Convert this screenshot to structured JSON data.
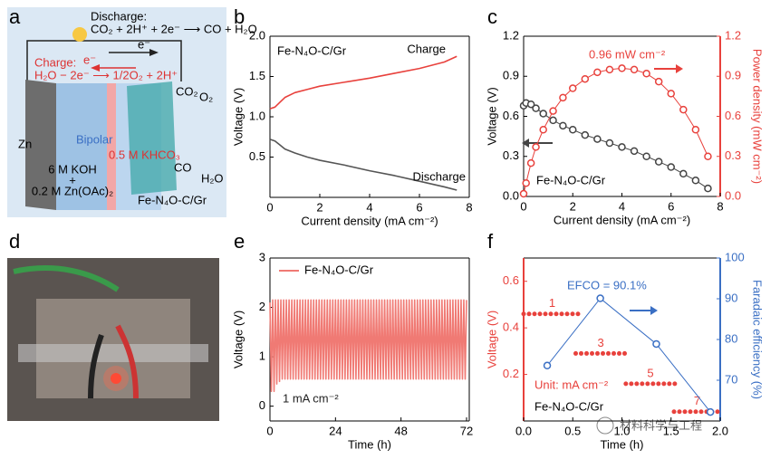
{
  "panel_labels": [
    "a",
    "b",
    "c",
    "d",
    "e",
    "f"
  ],
  "schematic": {
    "discharge_label": "Discharge:",
    "discharge_reaction": "CO₂ + 2H⁺ + 2e⁻ ⟶ CO + H₂O",
    "electron_top": "e⁻",
    "electron_charge": "e⁻",
    "charge_label": "Charge:",
    "charge_reaction": "H₂O − 2e⁻ ⟶ 1/2O₂ + 2H⁺",
    "anode": "Zn",
    "membrane": "Bipolar",
    "catholyte": "0.5 M KHCO₃",
    "species": [
      "CO₂",
      "O₂",
      "CO",
      "H₂O"
    ],
    "anolyte": [
      "6 M KOH",
      "+",
      "0.2 M Zn(OAc)₂"
    ],
    "cathode": "Fe-N₄O-C/Gr"
  },
  "watermark": "材料科学与工程",
  "chart_data": [
    {
      "type": "line",
      "inset_title": "Fe-N₄O-C/Gr",
      "xlabel": "Current density (mA cm⁻²)",
      "ylabel": "Voltage (V)",
      "xlim": [
        0,
        8
      ],
      "xticks": [
        0,
        2,
        4,
        6,
        8
      ],
      "ylim": [
        0,
        2
      ],
      "yticks": [
        0.5,
        {
          "value": 1,
          "label": "1.0"
        },
        1.5,
        {
          "value": 2,
          "label": "2.0"
        }
      ],
      "series": [
        {
          "name": "Charge",
          "color": "#e8413c",
          "x": [
            0,
            0.2,
            0.4,
            0.6,
            1,
            1.5,
            2,
            3,
            4,
            5,
            6,
            7,
            7.5
          ],
          "values": [
            1.1,
            1.12,
            1.18,
            1.24,
            1.3,
            1.34,
            1.38,
            1.43,
            1.48,
            1.54,
            1.6,
            1.68,
            1.75
          ]
        },
        {
          "name": "Discharge",
          "color": "#555555",
          "x": [
            0,
            0.2,
            0.4,
            0.6,
            1,
            1.5,
            2,
            3,
            4,
            5,
            6,
            7,
            7.5
          ],
          "values": [
            0.72,
            0.7,
            0.65,
            0.6,
            0.55,
            0.5,
            0.46,
            0.4,
            0.33,
            0.27,
            0.2,
            0.13,
            0.09
          ]
        }
      ]
    },
    {
      "type": "line",
      "inset_title": "Fe-N₄O-C/Gr",
      "annotations": [
        "0.96 mW cm⁻²"
      ],
      "xlabel": "Current density (mA cm⁻²)",
      "ylabel": "Voltage (V)",
      "y2label": "Power density (mW cm⁻²)",
      "y2_axis_color": "#e8413c",
      "xlim": [
        0,
        8
      ],
      "xticks": [
        0,
        2,
        4,
        6,
        8
      ],
      "ylim": [
        0,
        1.2
      ],
      "yticks": [
        {
          "value": 0,
          "label": "0.0"
        },
        0.3,
        0.6,
        0.9,
        1.2
      ],
      "y2lim": [
        0,
        1.2
      ],
      "y2ticks": [
        {
          "value": 0,
          "label": "0.0"
        },
        0.3,
        0.6,
        0.9,
        1.2
      ],
      "series": [
        {
          "color": "#444444",
          "marker": "circle",
          "x": [
            0,
            0.1,
            0.3,
            0.5,
            0.8,
            1.2,
            1.6,
            2,
            2.5,
            3,
            3.5,
            4,
            4.5,
            5,
            5.5,
            6,
            6.5,
            7,
            7.5
          ],
          "values": [
            0.68,
            0.7,
            0.69,
            0.66,
            0.62,
            0.57,
            0.53,
            0.5,
            0.46,
            0.43,
            0.4,
            0.37,
            0.34,
            0.3,
            0.26,
            0.22,
            0.17,
            0.12,
            0.06
          ]
        },
        {
          "color": "#e8413c",
          "marker": "circle",
          "axis": "y2",
          "x": [
            0,
            0.1,
            0.3,
            0.5,
            0.8,
            1.2,
            1.6,
            2,
            2.5,
            3,
            3.5,
            4,
            4.5,
            5,
            5.5,
            6,
            6.5,
            7,
            7.5
          ],
          "values": [
            0.02,
            0.1,
            0.25,
            0.37,
            0.5,
            0.64,
            0.74,
            0.81,
            0.88,
            0.93,
            0.95,
            0.96,
            0.95,
            0.92,
            0.86,
            0.77,
            0.65,
            0.5,
            0.3
          ]
        }
      ]
    },
    {
      "type": "line",
      "annotations": [
        "1 mA cm⁻²"
      ],
      "legend": "upper left",
      "xlabel": "Time (h)",
      "ylabel": "Voltage (V)",
      "xlim": [
        0,
        73
      ],
      "xticks": [
        0,
        24,
        48,
        72
      ],
      "ylim": [
        -0.3,
        3
      ],
      "yticks": [
        0,
        1,
        2,
        3
      ],
      "series": [
        {
          "name": "Fe-N₄O-C/Gr",
          "color": "#f07a74",
          "x": [
            0,
            0.5,
            1,
            1.5,
            2,
            2.5,
            3,
            3.5,
            4,
            4.5,
            5,
            5.5,
            6,
            6.5,
            7,
            7.5,
            8,
            8.5,
            9,
            9.5,
            10,
            10.5,
            11,
            11.5,
            12,
            12.5,
            13,
            13.5,
            14,
            14.5,
            15,
            15.5,
            16,
            16.5,
            17,
            17.5,
            18,
            18.5,
            19,
            19.5,
            20,
            20.5,
            21,
            21.5,
            22,
            22.5,
            23,
            23.5,
            24,
            24.5,
            25,
            25.5,
            26,
            26.5,
            27,
            27.5,
            28,
            28.5,
            29,
            29.5,
            30,
            30.5,
            31,
            31.5,
            32,
            32.5,
            33,
            33.5,
            34,
            34.5,
            35,
            35.5,
            36,
            36.5,
            37,
            37.5,
            38,
            38.5,
            39,
            39.5,
            40,
            40.5,
            41,
            41.5,
            42,
            42.5,
            43,
            43.5,
            44,
            44.5,
            45,
            45.5,
            46,
            46.5,
            47,
            47.5,
            48,
            48.5,
            49,
            49.5,
            50,
            50.5,
            51,
            51.5,
            52,
            52.5,
            53,
            53.5,
            54,
            54.5,
            55,
            55.5,
            56,
            56.5,
            57,
            57.5,
            58,
            58.5,
            59,
            59.5,
            60,
            60.5,
            61,
            61.5,
            62,
            62.5,
            63,
            63.5,
            64,
            64.5,
            65,
            65.5,
            66,
            66.5,
            67,
            67.5,
            68,
            68.5,
            69,
            69.5,
            70,
            70.5,
            71,
            71.5,
            72
          ],
          "values": [
            2.1,
            0.3,
            2.15,
            0.3,
            2.15,
            0.45,
            2.15,
            0.5,
            2.15,
            0.55,
            2.15,
            0.55,
            2.15,
            0.55,
            2.15,
            0.55,
            2.15,
            0.55,
            2.15,
            0.55,
            2.15,
            0.55,
            2.15,
            0.55,
            2.15,
            0.55,
            2.15,
            0.55,
            2.15,
            0.55,
            2.15,
            0.55,
            2.15,
            0.55,
            2.15,
            0.55,
            2.15,
            0.55,
            2.15,
            0.55,
            2.15,
            0.55,
            2.15,
            0.55,
            2.15,
            0.55,
            2.15,
            0.55,
            2.15,
            0.55,
            2.15,
            0.55,
            2.15,
            0.55,
            2.15,
            0.55,
            2.15,
            0.55,
            2.15,
            0.55,
            2.15,
            0.55,
            2.15,
            0.55,
            2.15,
            0.55,
            2.15,
            0.55,
            2.15,
            0.55,
            2.15,
            0.55,
            2.15,
            0.55,
            2.15,
            0.55,
            2.15,
            0.55,
            2.15,
            0.55,
            2.15,
            0.55,
            2.15,
            0.55,
            2.15,
            0.55,
            2.15,
            0.55,
            2.15,
            0.55,
            2.15,
            0.55,
            2.15,
            0.55,
            2.15,
            0.55,
            2.15,
            0.55,
            2.15,
            0.55,
            2.15,
            0.55,
            2.15,
            0.55,
            2.15,
            0.55,
            2.15,
            0.55,
            2.15,
            0.55,
            2.15,
            0.55,
            2.15,
            0.55,
            2.15,
            0.55,
            2.15,
            0.55,
            2.15,
            0.55,
            2.15,
            0.55,
            2.15,
            0.55,
            2.15,
            0.55,
            2.15,
            0.55,
            2.15,
            0.55,
            2.15,
            0.55,
            2.15,
            0.55,
            2.15,
            0.55,
            2.15,
            0.55,
            2.15,
            0.55,
            2.15,
            0.55,
            2.15,
            0.55,
            2.15
          ]
        }
      ]
    },
    {
      "type": "line",
      "inset_title": "Fe-N₄O-C/Gr",
      "annotations": [
        "EFCO = 90.1%",
        "Unit: mA cm⁻²"
      ],
      "xlabel": "Time (h)",
      "ylabel": "Voltage (V)",
      "y2label": "Faradaic efficiency (%)",
      "y_axis_color": "#e8413c",
      "y2_axis_color": "#3a6fc4",
      "xlim": [
        0,
        2
      ],
      "xticks": [
        {
          "value": 0,
          "label": "0.0"
        },
        0.5,
        {
          "value": 1,
          "label": "1.0"
        },
        1.5,
        {
          "value": 2,
          "label": "2.0"
        }
      ],
      "ylim": [
        0,
        0.7
      ],
      "yticks": [
        0.2,
        0.4,
        0.6
      ],
      "y2lim": [
        60,
        100
      ],
      "y2ticks": [
        70,
        80,
        90,
        100
      ],
      "segments": [
        {
          "label": "1",
          "color": "#e8413c",
          "x": [
            0,
            0.58
          ],
          "value": 0.46
        },
        {
          "label": "3",
          "color": "#e8413c",
          "x": [
            0.53,
            1.04
          ],
          "value": 0.29
        },
        {
          "label": "5",
          "color": "#e8413c",
          "x": [
            1.04,
            1.54
          ],
          "value": 0.16
        },
        {
          "label": "7",
          "color": "#e8413c",
          "x": [
            1.53,
            2
          ],
          "value": 0.04
        }
      ],
      "series": [
        {
          "color": "#3a6fc4",
          "marker": "circle",
          "axis": "y2",
          "x": [
            0.24,
            0.78,
            1.35,
            1.9
          ],
          "values": [
            73.6,
            90.1,
            78.9,
            62.2
          ]
        }
      ]
    }
  ]
}
